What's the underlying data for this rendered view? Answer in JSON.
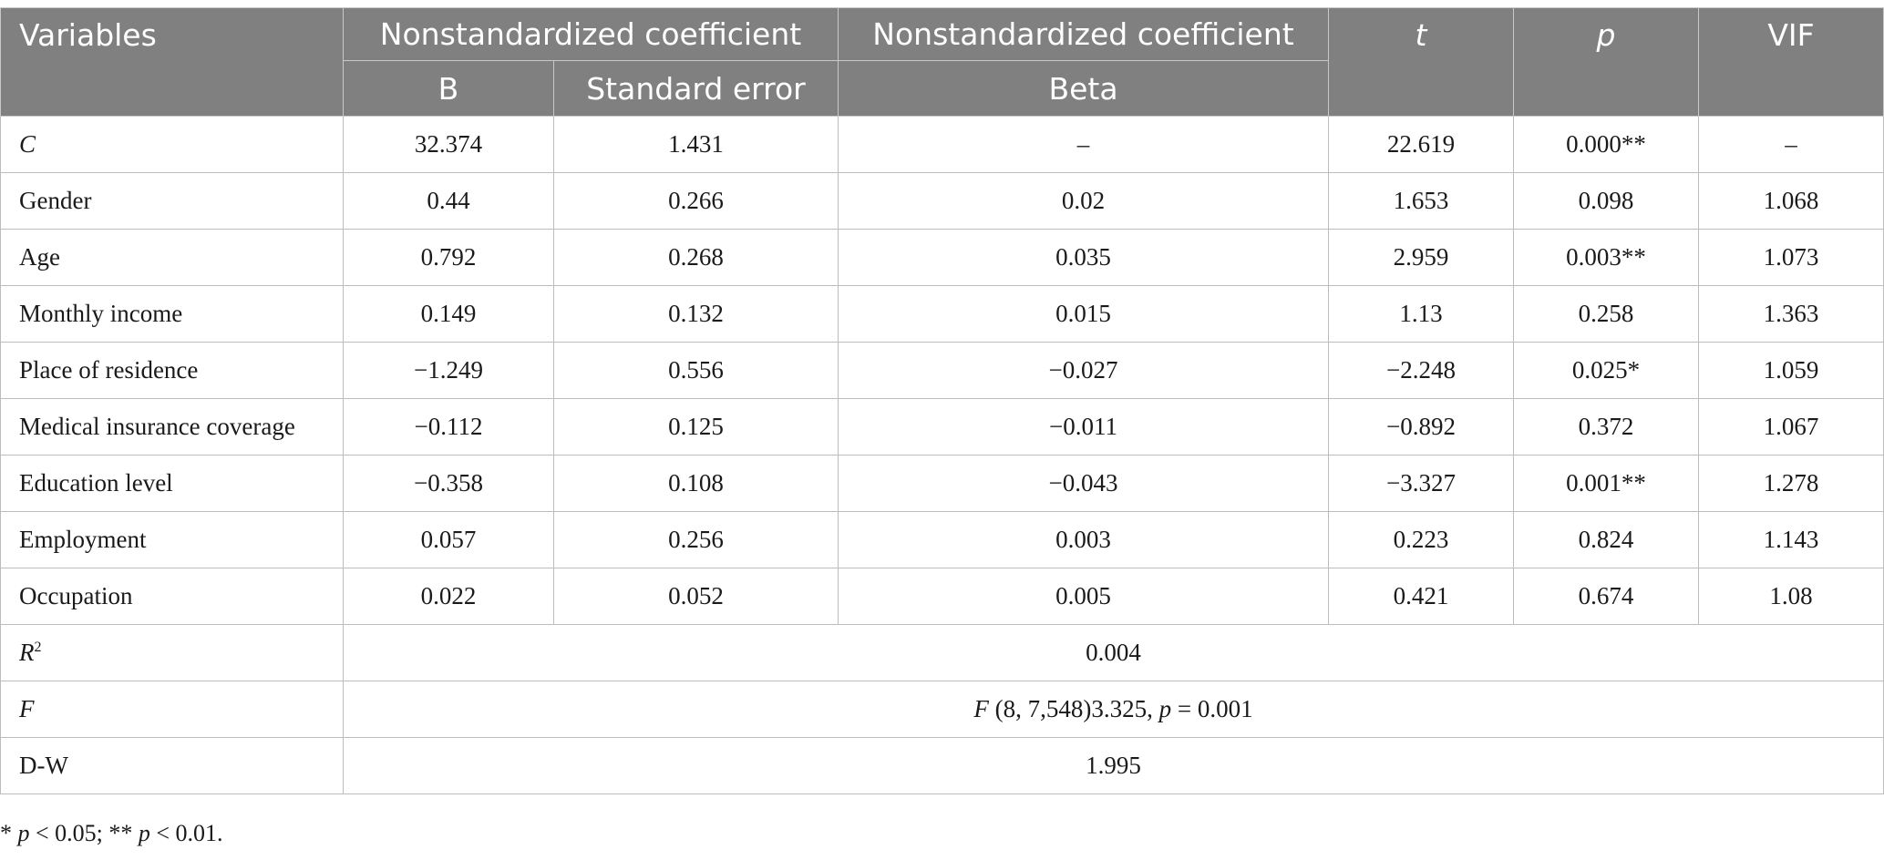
{
  "header": {
    "variables": "Variables",
    "group1": "Nonstandardized coefficient",
    "group2": "Nonstandardized coefficient",
    "t": "t",
    "p": "p",
    "vif": "VIF",
    "b": "B",
    "se": "Standard error",
    "beta": "Beta"
  },
  "rows": [
    {
      "var": "C",
      "b": "32.374",
      "se": "1.431",
      "beta": "–",
      "t": "22.619",
      "p": "0.000**",
      "vif": "–"
    },
    {
      "var": "Gender",
      "b": "0.44",
      "se": "0.266",
      "beta": "0.02",
      "t": "1.653",
      "p": "0.098",
      "vif": "1.068"
    },
    {
      "var": "Age",
      "b": "0.792",
      "se": "0.268",
      "beta": "0.035",
      "t": "2.959",
      "p": "0.003**",
      "vif": "1.073"
    },
    {
      "var": "Monthly income",
      "b": "0.149",
      "se": "0.132",
      "beta": "0.015",
      "t": "1.13",
      "p": "0.258",
      "vif": "1.363"
    },
    {
      "var": "Place of residence",
      "b": "−1.249",
      "se": "0.556",
      "beta": "−0.027",
      "t": "−2.248",
      "p": "0.025*",
      "vif": "1.059"
    },
    {
      "var": "Medical insurance coverage",
      "b": "−0.112",
      "se": "0.125",
      "beta": "−0.011",
      "t": "−0.892",
      "p": "0.372",
      "vif": "1.067"
    },
    {
      "var": "Education level",
      "b": "−0.358",
      "se": "0.108",
      "beta": "−0.043",
      "t": "−3.327",
      "p": "0.001**",
      "vif": "1.278"
    },
    {
      "var": "Employment",
      "b": "0.057",
      "se": "0.256",
      "beta": "0.003",
      "t": "0.223",
      "p": "0.824",
      "vif": "1.143"
    },
    {
      "var": "Occupation",
      "b": "0.022",
      "se": "0.052",
      "beta": "0.005",
      "t": "0.421",
      "p": "0.674",
      "vif": "1.08"
    }
  ],
  "summary": {
    "r2_label_base": "R",
    "r2_label_sup": "2",
    "r2_value": "0.004",
    "f_label": "F",
    "f_value_prefix": "F",
    "f_value_mid": " (8, 7,548)3.325, ",
    "f_value_p": "p",
    "f_value_end": " = 0.001",
    "dw_label": "D-W",
    "dw_value": "1.995"
  },
  "note": {
    "star1": "* ",
    "p1": "p",
    "mid": " < 0.05; ** ",
    "p2": "p",
    "end": " < 0.01."
  }
}
